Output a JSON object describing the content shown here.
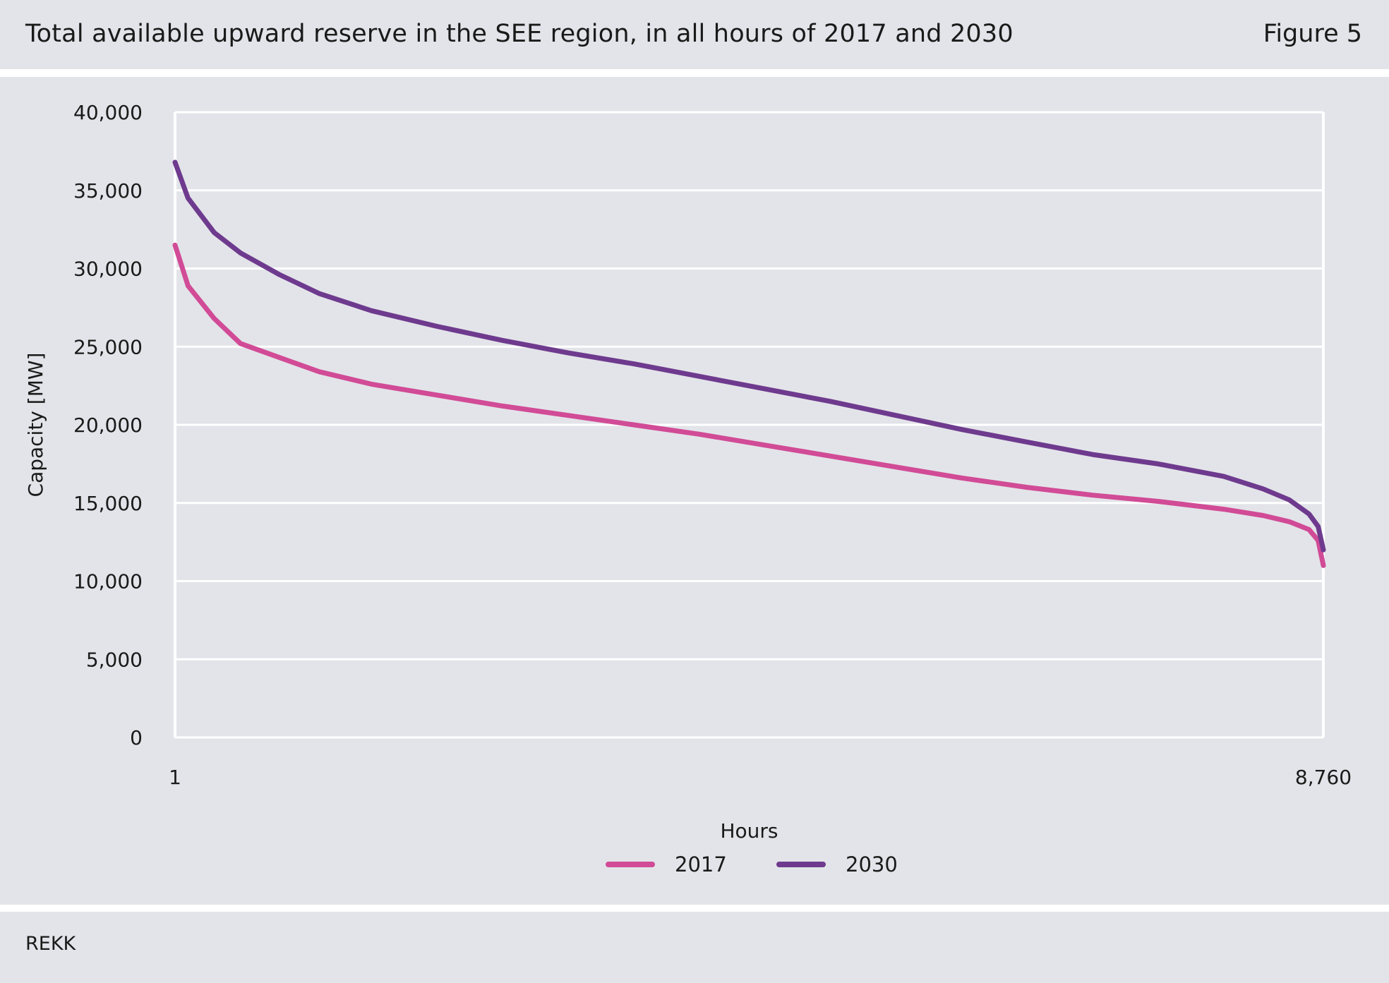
{
  "header": {
    "title": "Total available upward reserve in the SEE region, in all hours of 2017 and 2030",
    "figure_number": "Figure 5"
  },
  "footer": {
    "source": "REKK"
  },
  "colors": {
    "background": "#e3e4e9",
    "series_2017": "#d14b96",
    "series_2030": "#6e3a8e",
    "grid": "#ffffff"
  },
  "chart_data": {
    "type": "line",
    "title": "Total available upward reserve in the SEE region, in all hours of 2017 and 2030",
    "xlabel": "Hours",
    "ylabel": "Capacity [MW]",
    "x_tick_labels": [
      "1",
      "8,760"
    ],
    "y_tick_labels": [
      "0",
      "5,000",
      "10,000",
      "15,000",
      "20,000",
      "25,000",
      "30,000",
      "35,000",
      "40,000"
    ],
    "xlim": [
      1,
      8760
    ],
    "ylim": [
      0,
      40000
    ],
    "y_ticks": [
      0,
      5000,
      10000,
      15000,
      20000,
      25000,
      30000,
      35000,
      40000
    ],
    "grid": true,
    "legend_position": "bottom",
    "x": [
      1,
      100,
      300,
      500,
      800,
      1100,
      1500,
      2000,
      2500,
      3000,
      3500,
      4000,
      4500,
      5000,
      5500,
      6000,
      6500,
      7000,
      7500,
      8000,
      8300,
      8500,
      8650,
      8720,
      8760
    ],
    "series": [
      {
        "name": "2017",
        "values": [
          31500,
          28900,
          26800,
          25200,
          24300,
          23400,
          22600,
          21900,
          21200,
          20600,
          20000,
          19400,
          18700,
          18000,
          17300,
          16600,
          16000,
          15500,
          15100,
          14600,
          14200,
          13800,
          13300,
          12600,
          11000
        ]
      },
      {
        "name": "2030",
        "values": [
          36800,
          34500,
          32300,
          31000,
          29600,
          28400,
          27300,
          26300,
          25400,
          24600,
          23900,
          23100,
          22300,
          21500,
          20600,
          19700,
          18900,
          18100,
          17500,
          16700,
          15900,
          15200,
          14300,
          13500,
          12000
        ]
      }
    ]
  }
}
